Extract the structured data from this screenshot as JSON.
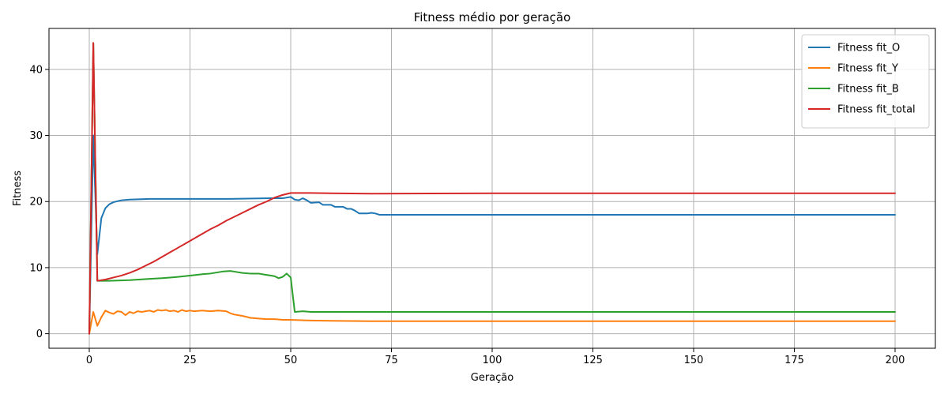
{
  "chart_data": {
    "type": "line",
    "title": "Fitness médio por geração",
    "xlabel": "Geração",
    "ylabel": "Fitness",
    "xlim": [
      -10,
      210
    ],
    "ylim": [
      -2.2,
      46.2
    ],
    "xticks": [
      0,
      25,
      50,
      75,
      100,
      125,
      150,
      175,
      200
    ],
    "yticks": [
      0,
      10,
      20,
      30,
      40
    ],
    "grid": true,
    "legend_position": "top-right",
    "series": [
      {
        "name": "Fitness fit_O",
        "color": "#1f77b4",
        "points": [
          [
            0,
            0
          ],
          [
            1,
            30
          ],
          [
            2,
            12
          ],
          [
            3,
            17.5
          ],
          [
            4,
            19
          ],
          [
            5,
            19.6
          ],
          [
            6,
            19.9
          ],
          [
            8,
            20.2
          ],
          [
            10,
            20.3
          ],
          [
            15,
            20.4
          ],
          [
            25,
            20.4
          ],
          [
            35,
            20.4
          ],
          [
            45,
            20.5
          ],
          [
            48,
            20.5
          ],
          [
            50,
            20.7
          ],
          [
            51,
            20.3
          ],
          [
            52,
            20.2
          ],
          [
            53,
            20.5
          ],
          [
            54,
            20.2
          ],
          [
            55,
            19.8
          ],
          [
            57,
            19.9
          ],
          [
            58,
            19.5
          ],
          [
            60,
            19.5
          ],
          [
            61,
            19.2
          ],
          [
            63,
            19.2
          ],
          [
            64,
            18.9
          ],
          [
            65,
            18.9
          ],
          [
            66,
            18.6
          ],
          [
            67,
            18.2
          ],
          [
            69,
            18.2
          ],
          [
            70,
            18.3
          ],
          [
            71,
            18.2
          ],
          [
            72,
            18
          ],
          [
            100,
            18
          ],
          [
            150,
            18
          ],
          [
            200,
            18
          ]
        ]
      },
      {
        "name": "Fitness fit_Y",
        "color": "#ff7f0e",
        "points": [
          [
            0,
            0
          ],
          [
            1,
            3.3
          ],
          [
            2,
            1.2
          ],
          [
            3,
            2.5
          ],
          [
            4,
            3.5
          ],
          [
            5,
            3.2
          ],
          [
            6,
            3
          ],
          [
            7,
            3.4
          ],
          [
            8,
            3.3
          ],
          [
            9,
            2.8
          ],
          [
            10,
            3.3
          ],
          [
            11,
            3.1
          ],
          [
            12,
            3.4
          ],
          [
            13,
            3.3
          ],
          [
            14,
            3.4
          ],
          [
            15,
            3.5
          ],
          [
            16,
            3.3
          ],
          [
            17,
            3.6
          ],
          [
            18,
            3.5
          ],
          [
            19,
            3.6
          ],
          [
            20,
            3.4
          ],
          [
            21,
            3.5
          ],
          [
            22,
            3.3
          ],
          [
            23,
            3.6
          ],
          [
            24,
            3.4
          ],
          [
            25,
            3.5
          ],
          [
            26,
            3.4
          ],
          [
            28,
            3.5
          ],
          [
            30,
            3.4
          ],
          [
            32,
            3.5
          ],
          [
            34,
            3.4
          ],
          [
            35,
            3.1
          ],
          [
            36,
            2.9
          ],
          [
            38,
            2.7
          ],
          [
            40,
            2.4
          ],
          [
            42,
            2.3
          ],
          [
            44,
            2.2
          ],
          [
            46,
            2.2
          ],
          [
            48,
            2.1
          ],
          [
            50,
            2.1
          ],
          [
            55,
            2.0
          ],
          [
            60,
            1.95
          ],
          [
            70,
            1.9
          ],
          [
            100,
            1.9
          ],
          [
            150,
            1.9
          ],
          [
            200,
            1.9
          ]
        ]
      },
      {
        "name": "Fitness fit_B",
        "color": "#2ca02c",
        "points": [
          [
            0,
            0
          ],
          [
            1,
            44
          ],
          [
            2,
            8
          ],
          [
            5,
            8
          ],
          [
            10,
            8.1
          ],
          [
            15,
            8.3
          ],
          [
            18,
            8.4
          ],
          [
            20,
            8.5
          ],
          [
            22,
            8.6
          ],
          [
            25,
            8.8
          ],
          [
            28,
            9
          ],
          [
            30,
            9.1
          ],
          [
            33,
            9.4
          ],
          [
            35,
            9.5
          ],
          [
            36,
            9.4
          ],
          [
            38,
            9.2
          ],
          [
            40,
            9.1
          ],
          [
            42,
            9.1
          ],
          [
            44,
            8.9
          ],
          [
            46,
            8.7
          ],
          [
            47,
            8.4
          ],
          [
            48,
            8.6
          ],
          [
            49,
            9.1
          ],
          [
            50,
            8.5
          ],
          [
            51,
            3.3
          ],
          [
            53,
            3.4
          ],
          [
            55,
            3.3
          ],
          [
            60,
            3.3
          ],
          [
            70,
            3.3
          ],
          [
            100,
            3.3
          ],
          [
            150,
            3.3
          ],
          [
            200,
            3.3
          ]
        ]
      },
      {
        "name": "Fitness fit_total",
        "color": "#d62728",
        "points": [
          [
            0,
            0
          ],
          [
            1,
            44
          ],
          [
            2,
            8
          ],
          [
            4,
            8.2
          ],
          [
            6,
            8.5
          ],
          [
            8,
            8.8
          ],
          [
            10,
            9.2
          ],
          [
            12,
            9.7
          ],
          [
            14,
            10.3
          ],
          [
            16,
            10.9
          ],
          [
            18,
            11.6
          ],
          [
            20,
            12.3
          ],
          [
            22,
            13
          ],
          [
            24,
            13.7
          ],
          [
            26,
            14.4
          ],
          [
            28,
            15.1
          ],
          [
            30,
            15.8
          ],
          [
            32,
            16.4
          ],
          [
            34,
            17.1
          ],
          [
            36,
            17.7
          ],
          [
            38,
            18.3
          ],
          [
            40,
            18.9
          ],
          [
            42,
            19.5
          ],
          [
            44,
            20
          ],
          [
            46,
            20.6
          ],
          [
            48,
            21
          ],
          [
            50,
            21.3
          ],
          [
            55,
            21.3
          ],
          [
            60,
            21.25
          ],
          [
            70,
            21.2
          ],
          [
            100,
            21.25
          ],
          [
            150,
            21.25
          ],
          [
            200,
            21.25
          ]
        ]
      }
    ]
  }
}
